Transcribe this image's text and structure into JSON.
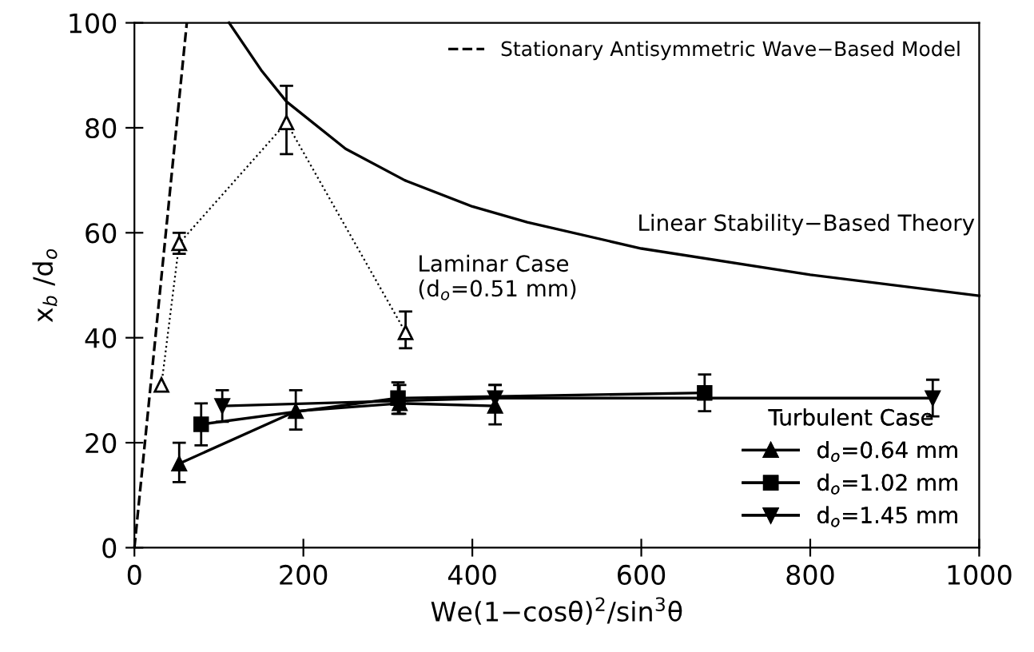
{
  "chart_data": {
    "type": "line",
    "xlabel": "We(1−cosθ)$^{2}$/sin$^{3}$θ",
    "ylabel": "x$_{b}$ /d$_{o}$",
    "xlim": [
      0,
      1000
    ],
    "ylim": [
      0,
      100
    ],
    "xticks": [
      0,
      200,
      400,
      600,
      800,
      1000
    ],
    "yticks": [
      0,
      20,
      40,
      60,
      80,
      100
    ],
    "legend": "right",
    "legend_title": "Turbulent Case",
    "grid": false,
    "series": [
      {
        "name": "Stationary Antisymmetric Wave−Based Model",
        "color": "#000000",
        "x": [
          0,
          62
        ],
        "values": [
          0,
          100
        ],
        "line_style": "dashed"
      },
      {
        "color": "#000000",
        "x": [
          112,
          150,
          180,
          250,
          320,
          400,
          465,
          600,
          800,
          1000
        ],
        "values": [
          100,
          91,
          85,
          76,
          70,
          65,
          62,
          57,
          52,
          48
        ],
        "line_style": "solid"
      },
      {
        "color": "#000000",
        "x": [
          32,
          53,
          180,
          321
        ],
        "values": [
          31,
          58,
          81,
          41
        ],
        "errors": [
          null,
          [
            56,
            60
          ],
          [
            75,
            88
          ],
          [
            38,
            45
          ]
        ],
        "line_style": "dotted",
        "marker": "triangle-open"
      },
      {
        "name": "d$_{o}$=0.64 mm",
        "color": "#000000",
        "x": [
          53,
          191,
          314,
          427
        ],
        "values": [
          16,
          26,
          27.5,
          27
        ],
        "errors": [
          [
            12.5,
            20
          ],
          [
            22.5,
            30
          ],
          [
            25.5,
            31
          ],
          [
            23.5,
            31
          ]
        ],
        "line_style": "solid",
        "marker": "triangle"
      },
      {
        "name": "d$_{o}$=1.02 mm",
        "color": "#000000",
        "x": [
          79,
          312,
          675
        ],
        "values": [
          23.5,
          28.5,
          29.5
        ],
        "errors": [
          [
            19.5,
            27.5
          ],
          [
            25.5,
            31.5
          ],
          [
            26,
            33
          ]
        ],
        "line_style": "solid",
        "marker": "square"
      },
      {
        "name": "d$_{o}$=1.45 mm",
        "color": "#000000",
        "x": [
          104,
          427,
          945
        ],
        "values": [
          27,
          28.5,
          28.5
        ],
        "errors": [
          [
            24,
            30
          ],
          [
            26,
            31
          ],
          [
            25,
            32
          ]
        ],
        "line_style": "solid",
        "marker": "triangle-down"
      }
    ],
    "annotations": [
      "Linear Stability−Based Theory",
      "Laminar Case\n(d$_{o}$=0.51 mm)"
    ]
  }
}
